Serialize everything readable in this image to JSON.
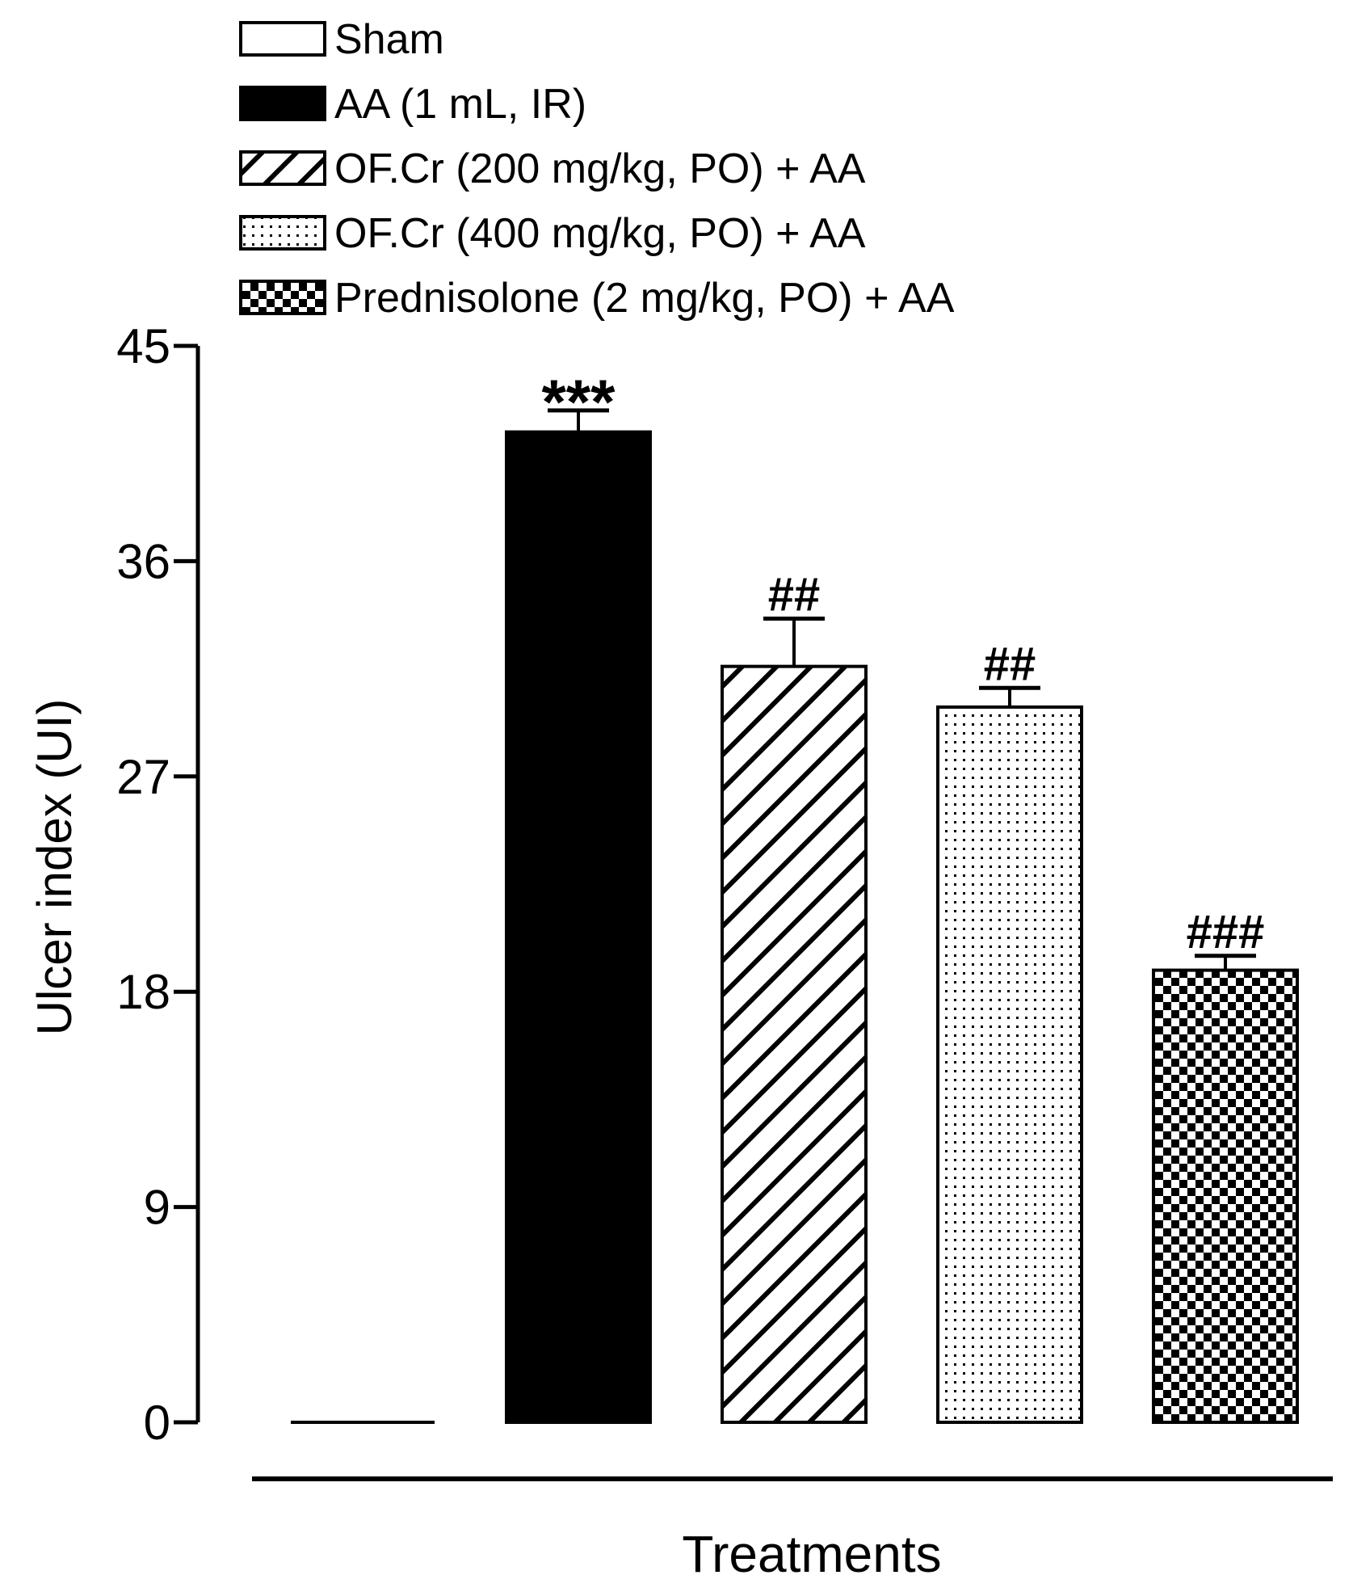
{
  "chart_data": {
    "type": "bar",
    "title": "",
    "xlabel": "Treatments",
    "ylabel": "Ulcer index (UI)",
    "ylim": [
      0,
      45
    ],
    "yticks": [
      0,
      9,
      18,
      27,
      36,
      45
    ],
    "ytick_labels": [
      "0",
      "9",
      "18",
      "27",
      "36",
      "45"
    ],
    "grid": false,
    "legend_position": "top-left",
    "categories": [
      "Sham",
      "AA (1 mL, IR)",
      "OF.Cr (200 mg/kg, PO) + AA",
      "OF.Cr (400 mg/kg, PO) + AA",
      "Prednisolone (2 mg/kg, PO) + AA"
    ],
    "values": [
      0,
      41.4,
      31.6,
      29.9,
      18.9
    ],
    "errors": [
      0,
      0.9,
      2.0,
      0.8,
      0.6
    ],
    "significance": [
      "",
      "***",
      "##",
      "##",
      "###"
    ],
    "fills": [
      "white",
      "black",
      "hatch",
      "dots",
      "checker"
    ],
    "colors": {
      "fill_dark": "#000000",
      "fill_light": "#ffffff"
    }
  }
}
